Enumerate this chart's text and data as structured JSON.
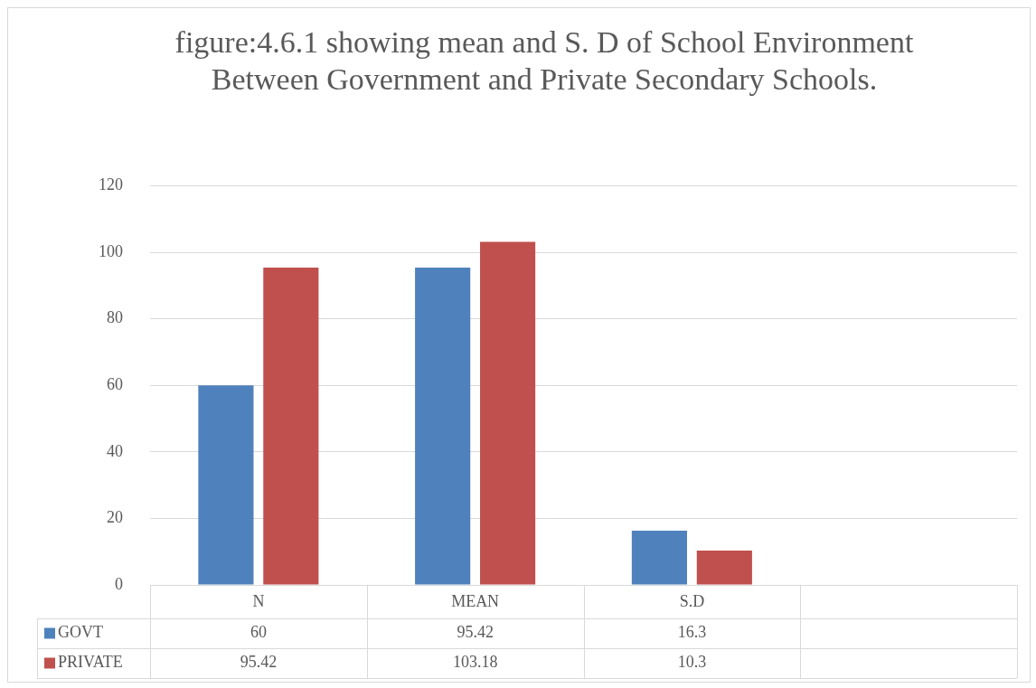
{
  "chart_data": {
    "type": "bar",
    "title": "figure:4.6.1 showing mean and S. D of School Environment Between Government and Private Secondary Schools.",
    "categories": [
      "N",
      "MEAN",
      "S.D",
      null
    ],
    "series": [
      {
        "name": "GOVT",
        "color": "#4f81bd",
        "values": [
          60,
          95.42,
          16.3,
          null
        ]
      },
      {
        "name": "PRIVATE",
        "color": "#c0504d",
        "values": [
          95.42,
          103.18,
          10.3,
          null
        ]
      }
    ],
    "ylim": [
      0,
      120
    ],
    "yticks": [
      0,
      20,
      40,
      60,
      80,
      100,
      120
    ],
    "grid": "y",
    "legend": "bottom",
    "data_labels": true
  }
}
